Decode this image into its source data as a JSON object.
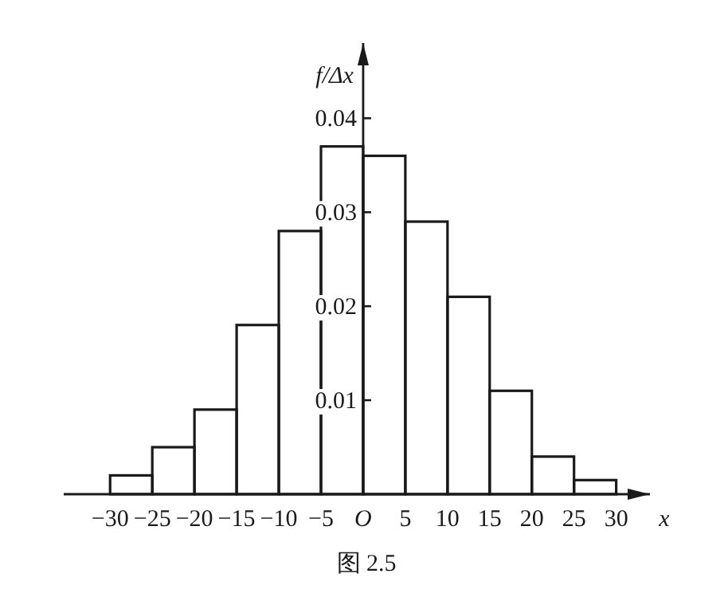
{
  "chart_data": {
    "type": "histogram",
    "ylabel": "f/Δx",
    "xlabel": "x",
    "bins": [
      -30,
      -25,
      -20,
      -15,
      -10,
      -5,
      0,
      5,
      10,
      15,
      20,
      25,
      30
    ],
    "values": [
      0.002,
      0.005,
      0.009,
      0.018,
      0.028,
      0.037,
      0.036,
      0.029,
      0.021,
      0.011,
      0.004,
      0.0015
    ],
    "color": "#1a1a1a",
    "xlim": [
      -35.5,
      34
    ],
    "ylim": [
      0,
      0.048
    ],
    "xticks": [
      {
        "value": -30,
        "label": "−30"
      },
      {
        "value": -25,
        "label": "−25"
      },
      {
        "value": -20,
        "label": "−20"
      },
      {
        "value": -15,
        "label": "−15"
      },
      {
        "value": -10,
        "label": "−10"
      },
      {
        "value": -5,
        "label": "−5"
      },
      {
        "value": 0,
        "label": "O"
      },
      5,
      10,
      15,
      20,
      25,
      30
    ],
    "yticks": [
      0.01,
      0.02,
      0.03,
      0.04
    ],
    "annotations": [
      "图 2.5"
    ]
  }
}
